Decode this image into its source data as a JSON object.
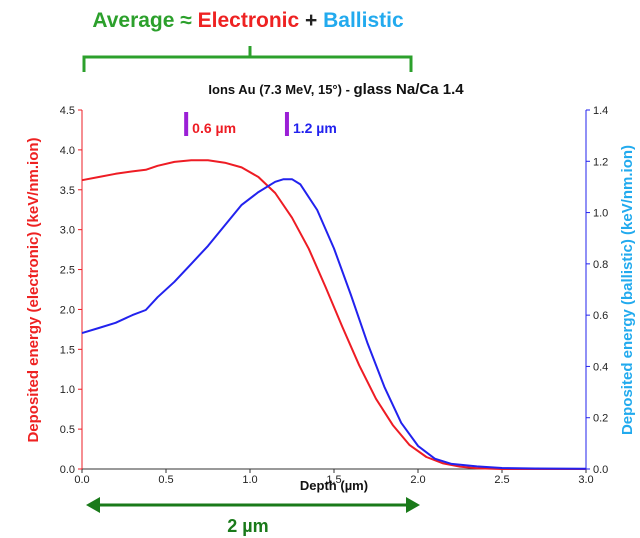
{
  "colors": {
    "average": "#2ca02c",
    "electronic": "#ee2222",
    "ballistic": "#22aaee",
    "electronic_curve": "#ee1c24",
    "ballistic_curve": "#2222ee",
    "marker": "#9b1fd6",
    "depth_arrow": "#1a7a1a"
  },
  "header": {
    "average": "Average",
    "approx": " ≈ ",
    "electronic": "Electronic",
    "plus": " + ",
    "ballistic": "Ballistic"
  },
  "chart_data": {
    "type": "line",
    "title_prefix": "Ions Au (7.3 MeV, 15°) - ",
    "title_main": "glass Na/Ca 1.4",
    "xlabel": "Depth (µm)",
    "ylabel_left": "Deposited energy (electronic) (keV/nm.ion)",
    "ylabel_right": "Deposited energy (ballistic) (keV/nm.ion)",
    "xlim": [
      0,
      3.0
    ],
    "ylim_left": [
      0,
      4.5
    ],
    "ylim_right": [
      0,
      1.4
    ],
    "xticks": [
      "0.0",
      "0.5",
      "1.0",
      "1.5",
      "2.0",
      "2.5",
      "3.0"
    ],
    "yticks_left": [
      "0.0",
      "0.5",
      "1.0",
      "1.5",
      "2.0",
      "2.5",
      "3.0",
      "3.5",
      "4.0",
      "4.5"
    ],
    "yticks_right": [
      "0.0",
      "0.2",
      "0.4",
      "0.6",
      "0.8",
      "1.0",
      "1.2",
      "1.4"
    ],
    "grid": false,
    "series": [
      {
        "name": "electronic",
        "axis": "left",
        "x": [
          0,
          0.1,
          0.2,
          0.3,
          0.38,
          0.45,
          0.55,
          0.65,
          0.75,
          0.85,
          0.95,
          1.05,
          1.15,
          1.25,
          1.35,
          1.45,
          1.55,
          1.65,
          1.75,
          1.85,
          1.95,
          2.05,
          2.15,
          2.25,
          2.35,
          2.5,
          2.7,
          3.0
        ],
        "y": [
          3.62,
          3.66,
          3.7,
          3.73,
          3.75,
          3.8,
          3.85,
          3.87,
          3.87,
          3.84,
          3.78,
          3.66,
          3.46,
          3.15,
          2.76,
          2.28,
          1.78,
          1.3,
          0.88,
          0.55,
          0.3,
          0.15,
          0.07,
          0.03,
          0.01,
          0.0,
          0.0,
          0.0
        ]
      },
      {
        "name": "ballistic",
        "axis": "right",
        "x": [
          0,
          0.1,
          0.2,
          0.3,
          0.38,
          0.45,
          0.55,
          0.65,
          0.75,
          0.85,
          0.95,
          1.05,
          1.15,
          1.2,
          1.25,
          1.3,
          1.4,
          1.5,
          1.6,
          1.7,
          1.8,
          1.9,
          2.0,
          2.1,
          2.2,
          2.35,
          2.5,
          2.7,
          3.0
        ],
        "y": [
          0.53,
          0.55,
          0.57,
          0.6,
          0.62,
          0.67,
          0.73,
          0.8,
          0.87,
          0.95,
          1.03,
          1.08,
          1.12,
          1.13,
          1.13,
          1.11,
          1.01,
          0.86,
          0.68,
          0.49,
          0.32,
          0.18,
          0.09,
          0.04,
          0.02,
          0.01,
          0.004,
          0.002,
          0.001
        ]
      }
    ],
    "annotations": [
      {
        "label": "0.6 µm",
        "x": 0.62,
        "color": "electronic"
      },
      {
        "label": "1.2 µm",
        "x": 1.22,
        "color": "ballistic"
      }
    ],
    "depth_arrow": {
      "label": "2 µm",
      "from": 0.0,
      "to": 2.0
    }
  }
}
